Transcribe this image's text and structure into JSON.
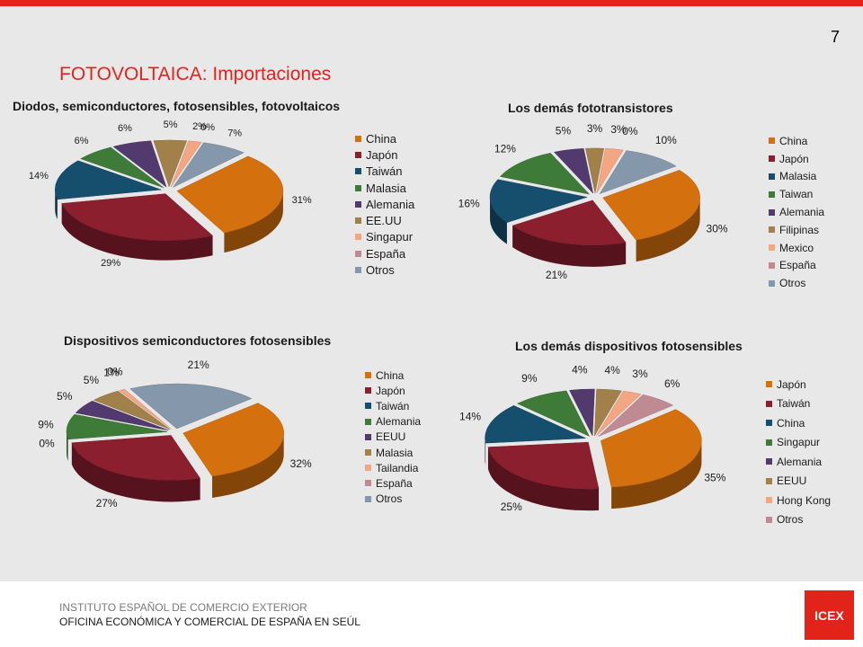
{
  "page_number": "7",
  "title": "FOTOVOLTAICA: Importaciones",
  "footer": {
    "line1": "INSTITUTO  ESPAÑOL DE COMERCIO  EXTERIOR",
    "line2": "OFICINA  ECONÓMICA  Y COMERCIAL  DE ESPAÑA EN SEÚL",
    "logo": "ICEX"
  },
  "colors": {
    "accent": "#e2231a",
    "series": [
      "#d4700d",
      "#8b1f2e",
      "#164e6e",
      "#3e7a38",
      "#533a6e",
      "#a1804a",
      "#f4a582",
      "#c08a92",
      "#8597aa"
    ]
  },
  "chart_data": [
    {
      "type": "pie",
      "title": "Diodos, semiconductores, fotosensibles, fotovoltaicos",
      "categories": [
        "China",
        "Japón",
        "Taiwán",
        "Malasia",
        "Alemania",
        "EE.UU",
        "Singapur",
        "España",
        "Otros"
      ],
      "values": [
        31,
        29,
        14,
        6,
        6,
        5,
        2,
        0,
        7
      ],
      "data_labels": [
        "31%",
        "29%",
        "14%",
        "6%",
        "6%",
        "5%",
        "2%",
        "0%",
        "7%"
      ],
      "legend": "right"
    },
    {
      "type": "pie",
      "title": "Los demás fototransistores",
      "categories": [
        "China",
        "Japón",
        "Malasia",
        "Taiwan",
        "Alemania",
        "Filipinas",
        "Mexico",
        "España",
        "Otros"
      ],
      "values": [
        30,
        21,
        16,
        12,
        5,
        3,
        3,
        0,
        10
      ],
      "data_labels": [
        "30%",
        "21%",
        "16%",
        "12%",
        "5%",
        "3%",
        "3%",
        "0%",
        "10%"
      ],
      "legend": "right"
    },
    {
      "type": "pie",
      "title": "Dispositivos semiconductores fotosensibles",
      "categories": [
        "China",
        "Japón",
        "Taiwán",
        "Alemania",
        "EEUU",
        "Malasia",
        "Tailandia",
        "España",
        "Otros"
      ],
      "values": [
        32,
        27,
        0,
        9,
        5,
        5,
        1,
        0,
        21
      ],
      "data_labels": [
        "32%",
        "27%",
        "0%",
        "9%",
        "5%",
        "5%",
        "1%",
        "0%",
        "21%"
      ],
      "legend": "right"
    },
    {
      "type": "pie",
      "title": "Los demás dispositivos fotosensibles",
      "categories": [
        "Japón",
        "Taiwán",
        "China",
        "Singapur",
        "Alemania",
        "EEUU",
        "Hong Kong",
        "Otros"
      ],
      "values": [
        35,
        25,
        14,
        9,
        4,
        4,
        3,
        6
      ],
      "data_labels": [
        "35%",
        "25%",
        "14%",
        "9%",
        "4%",
        "4%",
        "3%",
        "6%"
      ],
      "legend": "right"
    }
  ]
}
